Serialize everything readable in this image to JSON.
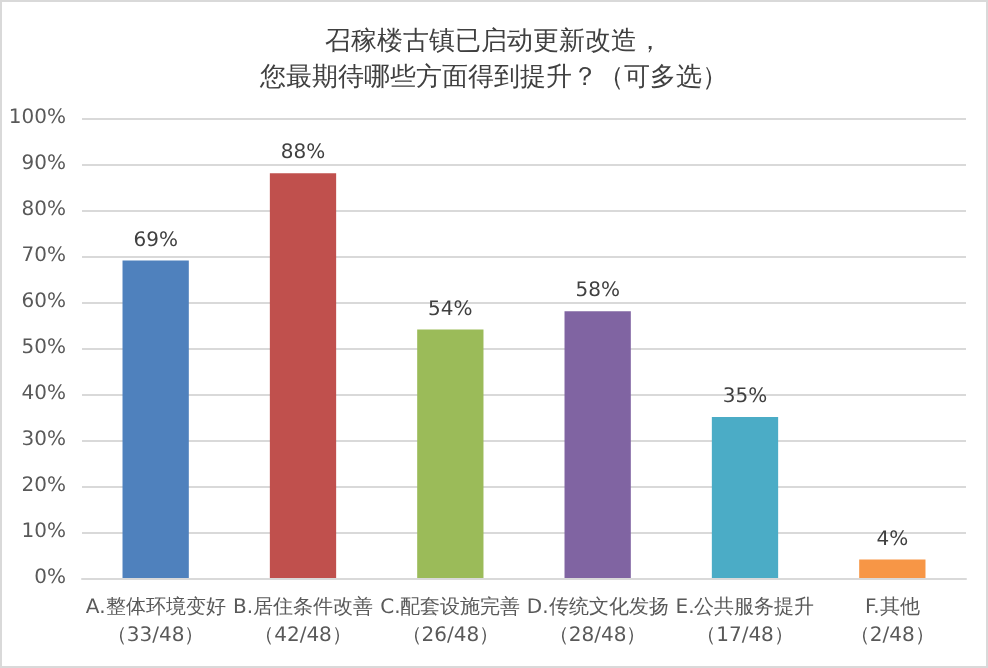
{
  "chart_data": {
    "type": "bar",
    "title": "召稼楼古镇已启动更新改造，您最期待哪些方面得到提升？（可多选）",
    "categories": [
      "A.整体环境变好（33/48）",
      "B.居住条件改善（42/48）",
      "C.配套设施完善（26/48）",
      "D.传统文化发扬（28/48）",
      "E.公共服务提升（17/48）",
      "F.其他（2/48）"
    ],
    "values": [
      69,
      88,
      54,
      58,
      35,
      4
    ],
    "colors": [
      "#4f81bd",
      "#c0504d",
      "#9bbb59",
      "#8064a2",
      "#4bacc6",
      "#f79646"
    ],
    "value_labels": [
      "69%",
      "88%",
      "54%",
      "58%",
      "35%",
      "4%"
    ],
    "ylim": [
      0,
      100
    ],
    "yticks": [
      {
        "value": 0,
        "label": "0%"
      },
      {
        "value": 10,
        "label": "10%"
      },
      {
        "value": 20,
        "label": "20%"
      },
      {
        "value": 30,
        "label": "30%"
      },
      {
        "value": 40,
        "label": "40%"
      },
      {
        "value": 50,
        "label": "50%"
      },
      {
        "value": 60,
        "label": "60%"
      },
      {
        "value": 70,
        "label": "70%"
      },
      {
        "value": 80,
        "label": "80%"
      },
      {
        "value": 90,
        "label": "90%"
      },
      {
        "value": 100,
        "label": "100%"
      }
    ],
    "grid": "y"
  }
}
